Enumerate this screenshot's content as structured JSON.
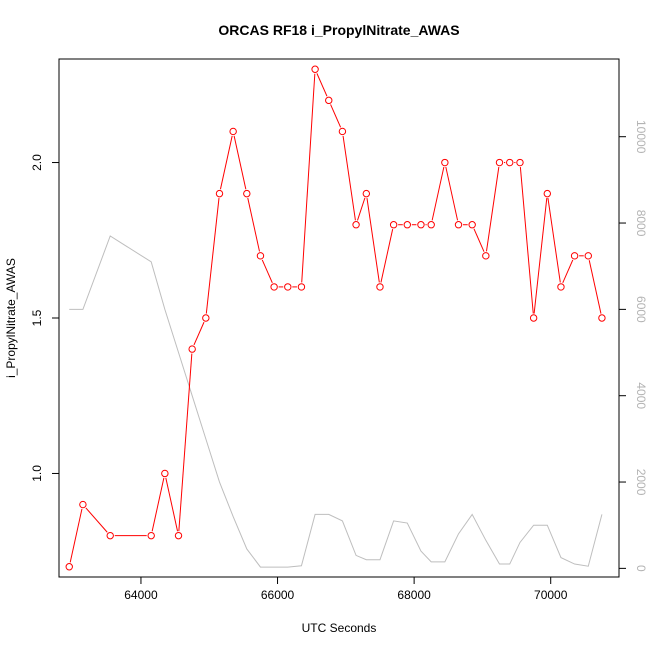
{
  "chart_data": {
    "type": "line",
    "title": "ORCAS RF18 i_PropylNitrate_AWAS",
    "xlabel": "UTC Seconds",
    "ylabel": "i_PropylNitrate_AWAS",
    "xlim": [
      62800,
      71000
    ],
    "ylim": [
      0.667,
      2.333
    ],
    "y2lim": [
      -200,
      11800
    ],
    "x_ticks": [
      64000,
      66000,
      68000,
      70000
    ],
    "x_tick_labels": [
      "64000",
      "66000",
      "68000",
      "70000"
    ],
    "y_ticks": [
      1.0,
      1.5,
      2.0
    ],
    "y_tick_labels": [
      "1.0",
      "1.5",
      "2.0"
    ],
    "y2_ticks": [
      0,
      2000,
      4000,
      6000,
      8000,
      10000
    ],
    "y2_tick_labels": [
      "0",
      "2000",
      "4000",
      "6000",
      "8000",
      "10000"
    ],
    "grid": false,
    "series": [
      {
        "axis": "left",
        "color": "#ff0000",
        "marker": "open-circle",
        "x": [
          62950,
          63150,
          63550,
          64150,
          64350,
          64550,
          64750,
          64950,
          65150,
          65350,
          65550,
          65750,
          65950,
          66150,
          66350,
          66550,
          66750,
          66950,
          67150,
          67300,
          67500,
          67700,
          67900,
          68100,
          68250,
          68450,
          68650,
          68850,
          69050,
          69250,
          69400,
          69550,
          69750,
          69950,
          70150,
          70350,
          70550,
          70750
        ],
        "y": [
          0.7,
          0.9,
          0.8,
          0.8,
          1.0,
          0.8,
          1.4,
          1.5,
          1.9,
          2.1,
          1.9,
          1.7,
          1.6,
          1.6,
          1.6,
          2.3,
          2.2,
          2.1,
          1.8,
          1.9,
          1.6,
          1.8,
          1.8,
          1.8,
          1.8,
          2.0,
          1.8,
          1.8,
          1.7,
          2.0,
          2.0,
          2.0,
          1.5,
          1.9,
          1.6,
          1.7,
          1.7,
          1.5
        ]
      },
      {
        "axis": "right",
        "color": "#bebebe",
        "marker": "none",
        "x": [
          62950,
          63150,
          63550,
          64150,
          64350,
          64550,
          64750,
          64950,
          65150,
          65350,
          65550,
          65750,
          65950,
          66150,
          66350,
          66550,
          66750,
          66950,
          67150,
          67300,
          67500,
          67700,
          67900,
          68100,
          68250,
          68450,
          68650,
          68850,
          69050,
          69250,
          69400,
          69550,
          69750,
          69950,
          70150,
          70350,
          70550,
          70750
        ],
        "y": [
          6000,
          6000,
          7700,
          7100,
          6000,
          5000,
          4000,
          3000,
          2000,
          1200,
          450,
          30,
          30,
          30,
          60,
          1250,
          1250,
          1100,
          300,
          200,
          200,
          1100,
          1050,
          400,
          150,
          150,
          800,
          1250,
          650,
          100,
          100,
          600,
          1000,
          1000,
          250,
          100,
          50,
          1250
        ]
      }
    ]
  }
}
